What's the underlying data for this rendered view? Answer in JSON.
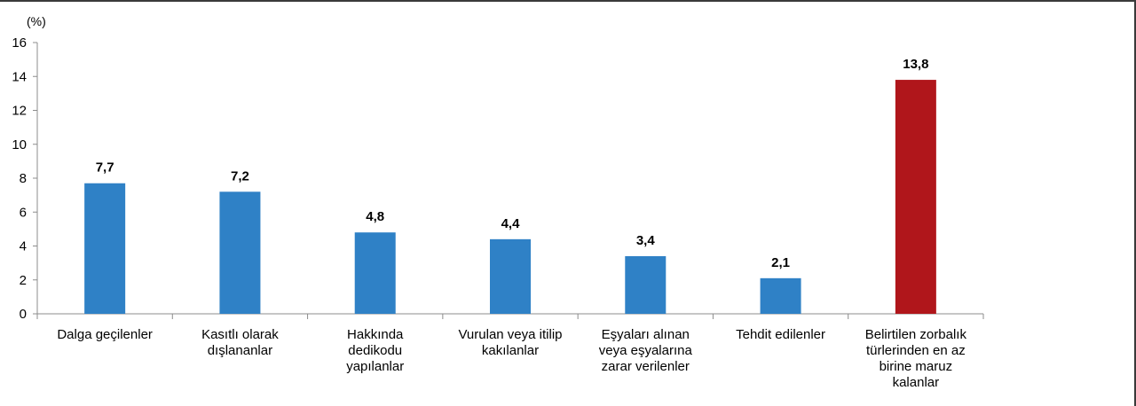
{
  "chart_data": {
    "type": "bar",
    "unit": "(%)",
    "categories": [
      [
        "Dalga geçilenler"
      ],
      [
        "Kasıtlı olarak",
        "dışlananlar"
      ],
      [
        "Hakkında",
        "dedikodu",
        "yapılanlar"
      ],
      [
        "Vurulan veya itilip",
        "kakılanlar"
      ],
      [
        "Eşyaları alınan",
        "veya eşyalarına",
        "zarar verilenler"
      ],
      [
        "Tehdit edilenler"
      ],
      [
        "Belirtilen zorbalık",
        "türlerinden en az",
        "birine maruz",
        "kalanlar"
      ]
    ],
    "values": [
      7.7,
      7.2,
      4.8,
      4.4,
      3.4,
      2.1,
      13.8
    ],
    "value_labels": [
      "7,7",
      "7,2",
      "4,8",
      "4,4",
      "3,4",
      "2,1",
      "13,8"
    ],
    "bar_colors": [
      "#2f81c6",
      "#2f81c6",
      "#2f81c6",
      "#2f81c6",
      "#2f81c6",
      "#2f81c6",
      "#b0161b"
    ],
    "ylim": [
      0,
      16
    ],
    "yticks": [
      0,
      2,
      4,
      6,
      8,
      10,
      12,
      14,
      16
    ],
    "ytick_labels": [
      "0",
      "2",
      "4",
      "6",
      "8",
      "10",
      "12",
      "14",
      "16"
    ],
    "grid": false,
    "legend": "none"
  }
}
